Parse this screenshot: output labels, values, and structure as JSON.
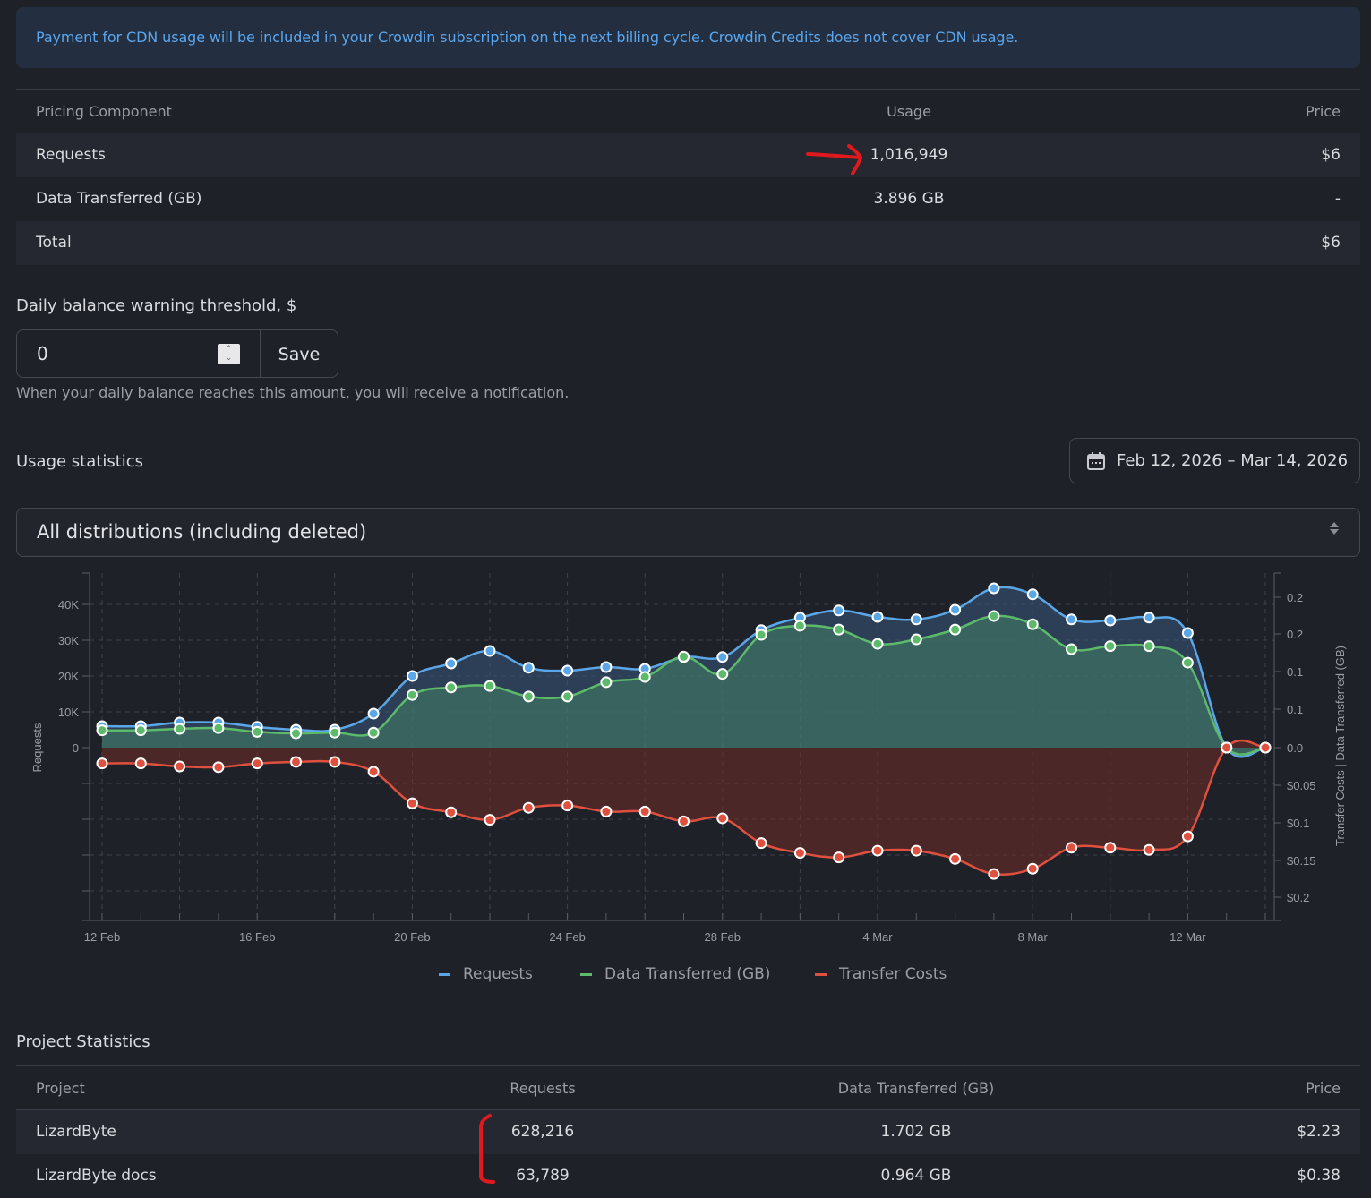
{
  "notice": "Payment for CDN usage will be included in your Crowdin subscription on the next billing cycle. Crowdin Credits does not cover CDN usage.",
  "pricing_table": {
    "headers": [
      "Pricing Component",
      "Usage",
      "Price"
    ],
    "rows": [
      {
        "component": "Requests",
        "usage": "1,016,949",
        "price": "$6"
      },
      {
        "component": "Data Transferred (GB)",
        "usage": "3.896 GB",
        "price": "-"
      },
      {
        "component": "Total",
        "usage": "",
        "price": "$6"
      }
    ]
  },
  "threshold": {
    "label": "Daily balance warning threshold, $",
    "value": "0",
    "save_label": "Save",
    "hint": "When your daily balance reaches this amount, you will receive a notification."
  },
  "usage_statistics": {
    "title": "Usage statistics",
    "date_range": "Feb 12, 2026 – Mar 14, 2026",
    "distribution_select": "All distributions (including deleted)"
  },
  "chart_data": {
    "type": "area",
    "title": "",
    "x": [
      "12 Feb",
      "13 Feb",
      "14 Feb",
      "15 Feb",
      "16 Feb",
      "17 Feb",
      "18 Feb",
      "19 Feb",
      "20 Feb",
      "21 Feb",
      "22 Feb",
      "23 Feb",
      "24 Feb",
      "25 Feb",
      "26 Feb",
      "27 Feb",
      "28 Feb",
      "1 Mar",
      "2 Mar",
      "3 Mar",
      "4 Mar",
      "5 Mar",
      "6 Mar",
      "7 Mar",
      "8 Mar",
      "9 Mar",
      "10 Mar",
      "11 Mar",
      "12 Mar",
      "13 Mar",
      "14 Mar"
    ],
    "x_tick_labels": [
      "12 Feb",
      "16 Feb",
      "20 Feb",
      "24 Feb",
      "28 Feb",
      "4 Mar",
      "8 Mar",
      "12 Mar"
    ],
    "ylabel_left": "Requests",
    "ylabel_right": "Transfer Costs | Data Transferred (GB)",
    "left_ticks": [
      "40K",
      "30K",
      "20K",
      "10K",
      "0"
    ],
    "right_ticks": [
      "0.2",
      "0.2",
      "0.1",
      "0.1",
      "0.0",
      "$0.05",
      "$0.1",
      "$0.15",
      "$0.2"
    ],
    "ylim_left": [
      -48000,
      48500
    ],
    "ylim_right": [
      -0.23,
      0.23
    ],
    "grid": true,
    "legend_position": "bottom",
    "series": [
      {
        "name": "Requests",
        "axis": "left",
        "color": "#5aa6e6",
        "values": [
          6000,
          6000,
          7000,
          7000,
          5800,
          5000,
          5000,
          9500,
          20000,
          23500,
          27000,
          22300,
          21500,
          22500,
          22000,
          25300,
          25300,
          32800,
          36300,
          38300,
          36500,
          35800,
          38500,
          44500,
          42800,
          35800,
          35500,
          36300,
          32000,
          0,
          0
        ]
      },
      {
        "name": "Data Transferred (GB)",
        "axis": "right",
        "color": "#5cba6a",
        "values": [
          0.023,
          0.023,
          0.025,
          0.026,
          0.021,
          0.019,
          0.02,
          0.02,
          0.07,
          0.08,
          0.082,
          0.068,
          0.068,
          0.087,
          0.094,
          0.121,
          0.098,
          0.15,
          0.162,
          0.157,
          0.138,
          0.144,
          0.157,
          0.175,
          0.164,
          0.131,
          0.135,
          0.135,
          0.113,
          0,
          0
        ]
      },
      {
        "name": "Transfer Costs",
        "axis": "right",
        "color": "#e0503e",
        "values": [
          0.021,
          0.021,
          0.025,
          0.026,
          0.021,
          0.019,
          0.019,
          0.032,
          0.074,
          0.086,
          0.096,
          0.08,
          0.077,
          0.085,
          0.085,
          0.098,
          0.094,
          0.127,
          0.14,
          0.146,
          0.137,
          0.137,
          0.148,
          0.168,
          0.161,
          0.133,
          0.133,
          0.136,
          0.118,
          0,
          0
        ]
      }
    ]
  },
  "project_statistics": {
    "title": "Project Statistics",
    "headers": [
      "Project",
      "Requests",
      "Data Transferred (GB)",
      "Price"
    ],
    "rows": [
      {
        "project": "LizardByte",
        "requests": "628,216",
        "data": "1.702 GB",
        "price": "$2.23"
      },
      {
        "project": "LizardByte docs",
        "requests": "63,789",
        "data": "0.964 GB",
        "price": "$0.38"
      }
    ]
  },
  "annotations": {
    "color": "#e0191e"
  }
}
